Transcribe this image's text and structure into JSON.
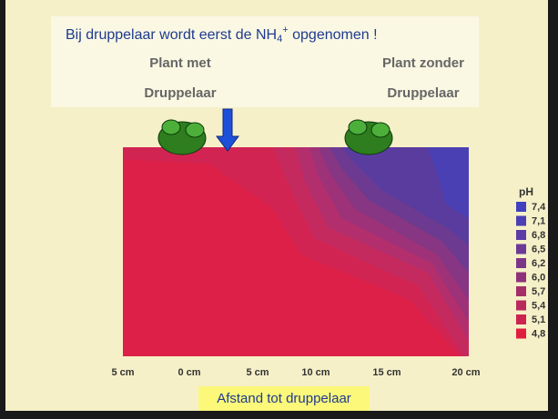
{
  "title": {
    "parts": [
      "Bij druppelaar wordt eerst de NH",
      "4",
      "+",
      " opgenomen !"
    ]
  },
  "labels": {
    "left": [
      "Plant met",
      "Druppelaar"
    ],
    "right": [
      "Plant zonder",
      "Druppelaar"
    ]
  },
  "x_axis": {
    "ticks": [
      "5 cm",
      "0 cm",
      "5 cm",
      "10 cm",
      "15 cm",
      "20 cm"
    ],
    "title": "Afstand tot druppelaar"
  },
  "legend": {
    "title": "pH",
    "entries": [
      "7,4",
      "7,1",
      "6,8",
      "6,5",
      "6,2",
      "6,0",
      "5,7",
      "5,4",
      "5,1",
      "4,8"
    ]
  }
}
